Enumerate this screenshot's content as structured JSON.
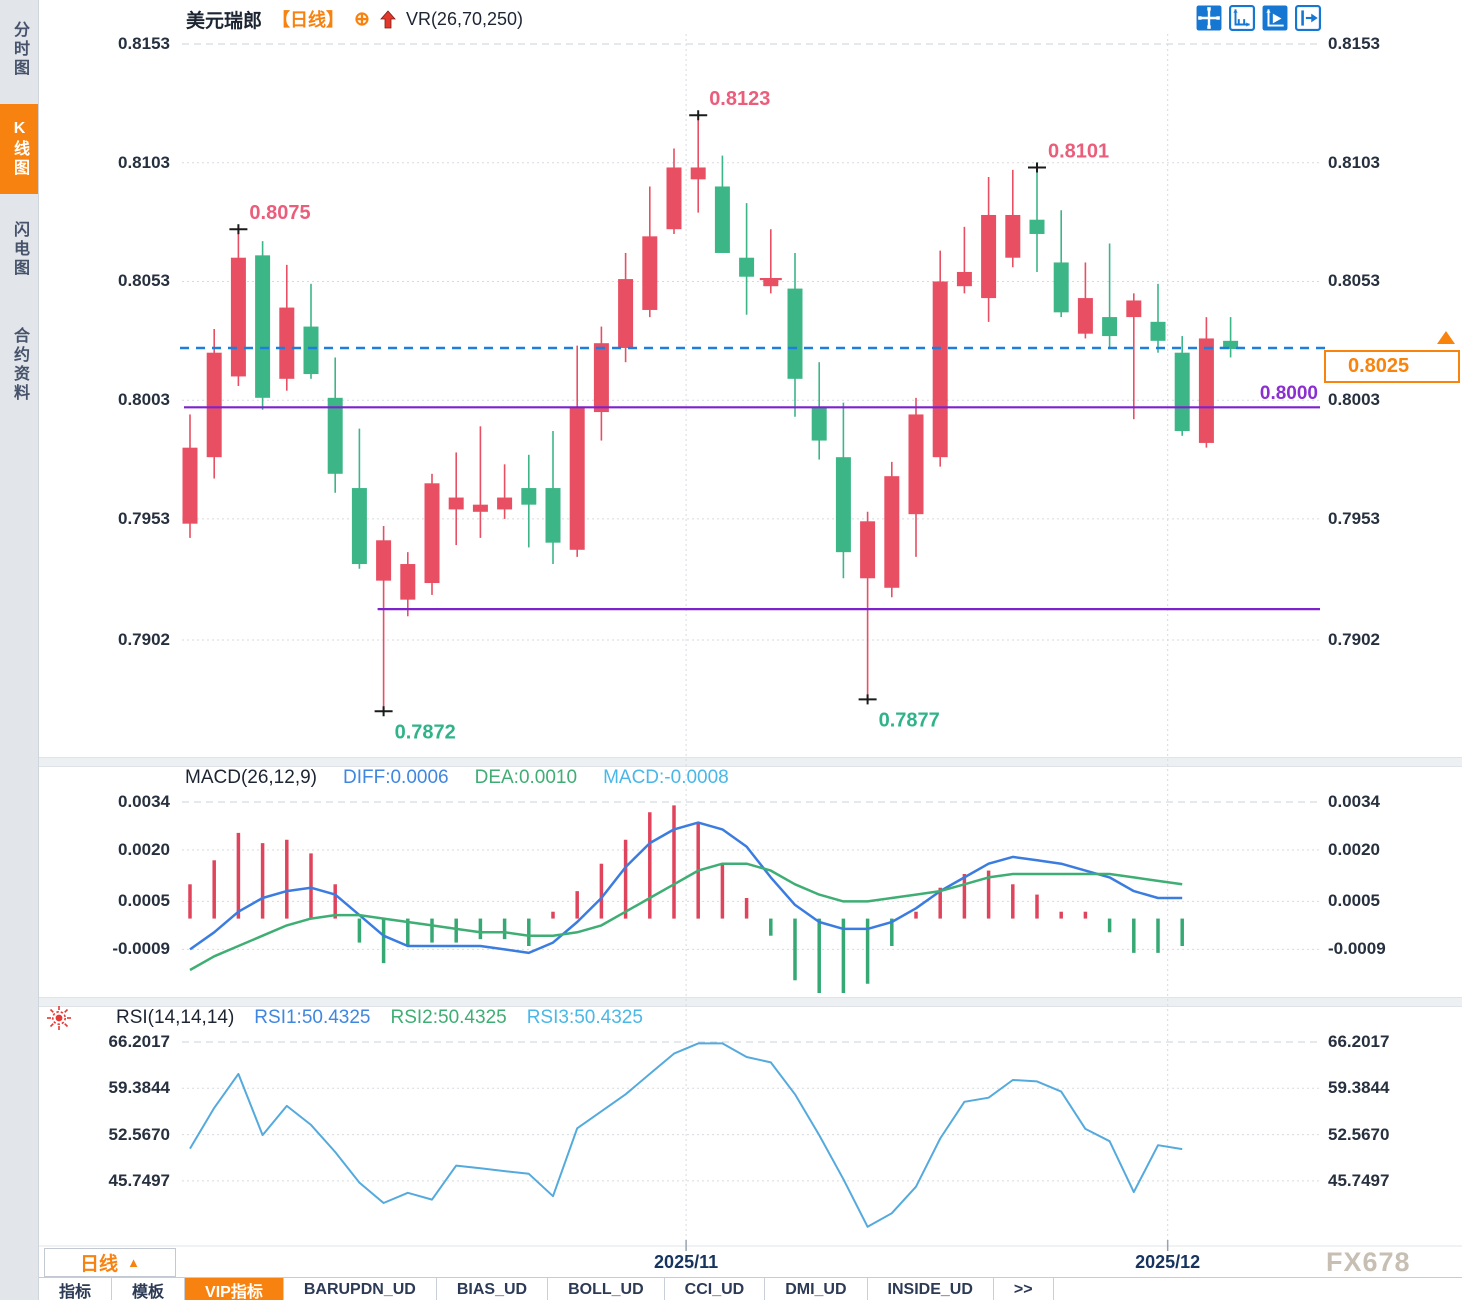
{
  "window": {
    "watermark": "FX678"
  },
  "sidebar": {
    "items": [
      {
        "label": "分时图",
        "active": false
      },
      {
        "label": "K线图",
        "active": true
      },
      {
        "label": "闪电图",
        "active": false
      },
      {
        "label": "合约资料",
        "active": false
      }
    ]
  },
  "header": {
    "symbol": "美元瑞郎",
    "period_tag": "【日线】",
    "target_icon_glyph": "⊕",
    "indicator_label": "VR(26,70,250)"
  },
  "toolbar": {
    "icons": [
      "move-crosshair-icon",
      "x-axis-scale-icon",
      "y-axis-scale-icon",
      "pan-right-icon"
    ]
  },
  "main_axis": [
    "0.8153",
    "0.8103",
    "0.8053",
    "0.8003",
    "0.7953",
    "0.7902"
  ],
  "price_marker": {
    "value": "0.8025"
  },
  "levels": {
    "label_0_8000": "0.8000"
  },
  "macd_header": {
    "title": "MACD(26,12,9)",
    "diff": "DIFF:0.0006",
    "dea": "DEA:0.0010",
    "macd": "MACD:-0.0008"
  },
  "macd_axis": [
    "0.0034",
    "0.0020",
    "0.0005",
    "-0.0009"
  ],
  "rsi_header": {
    "title": "RSI(14,14,14)",
    "rsi1": "RSI1:50.4325",
    "rsi2": "RSI2:50.4325",
    "rsi3": "RSI3:50.4325"
  },
  "rsi_axis": [
    "66.2017",
    "59.3844",
    "52.5670",
    "45.7497"
  ],
  "xaxis": [
    "2025/11",
    "2025/12"
  ],
  "bottom": {
    "period_label": "日线",
    "period_arrow": "▲",
    "tabs": [
      {
        "label": "指标",
        "active": false
      },
      {
        "label": "模板",
        "active": false
      },
      {
        "label": "VIP指标",
        "active": true
      },
      {
        "label": "BARUPDN_UD",
        "active": false
      },
      {
        "label": "BIAS_UD",
        "active": false
      },
      {
        "label": "BOLL_UD",
        "active": false
      },
      {
        "label": "CCI_UD",
        "active": false
      },
      {
        "label": "DMI_UD",
        "active": false
      },
      {
        "label": "INSIDE_UD",
        "active": false
      },
      {
        "label": ">>",
        "active": false
      }
    ]
  },
  "chart_data": {
    "type": "candlestick",
    "symbol": "美元瑞郎",
    "period": "日线",
    "ylim_main": [
      0.7854,
      0.8159
    ],
    "y_ticks_main": [
      0.8153,
      0.8103,
      0.8053,
      0.8003,
      0.7953,
      0.7902
    ],
    "price_line": 0.8025,
    "support_lines": [
      {
        "value": 0.8,
        "from_index": 0
      },
      {
        "value": 0.7915,
        "from_index": 8
      }
    ],
    "x_marks": [
      {
        "label": "2025/11",
        "index": 20.5
      },
      {
        "label": "2025/12",
        "index": 40.4
      }
    ],
    "candles": [
      [
        0.7951,
        0.7997,
        0.7945,
        0.7983
      ],
      [
        0.7979,
        0.8033,
        0.797,
        0.8023
      ],
      [
        0.8013,
        0.8075,
        0.8009,
        0.8063
      ],
      [
        0.8064,
        0.807,
        0.7999,
        0.8004
      ],
      [
        0.8012,
        0.806,
        0.8007,
        0.8042
      ],
      [
        0.8034,
        0.8052,
        0.8012,
        0.8014
      ],
      [
        0.8004,
        0.8021,
        0.7964,
        0.7972
      ],
      [
        0.7966,
        0.7991,
        0.7932,
        0.7934
      ],
      [
        0.7927,
        0.795,
        0.7872,
        0.7944
      ],
      [
        0.7919,
        0.7939,
        0.7912,
        0.7934
      ],
      [
        0.7926,
        0.7972,
        0.7921,
        0.7968
      ],
      [
        0.7957,
        0.7981,
        0.7942,
        0.7962
      ],
      [
        0.7956,
        0.7992,
        0.7945,
        0.7959
      ],
      [
        0.7957,
        0.7976,
        0.7953,
        0.7962
      ],
      [
        0.7966,
        0.798,
        0.7941,
        0.7959
      ],
      [
        0.7966,
        0.799,
        0.7934,
        0.7943
      ],
      [
        0.794,
        0.8026,
        0.7937,
        0.8
      ],
      [
        0.7998,
        0.8034,
        0.7986,
        0.8027
      ],
      [
        0.8025,
        0.8065,
        0.8019,
        0.8054
      ],
      [
        0.8041,
        0.8093,
        0.8038,
        0.8072
      ],
      [
        0.8075,
        0.8109,
        0.8073,
        0.8101
      ],
      [
        0.8096,
        0.8123,
        0.8082,
        0.8101
      ],
      [
        0.8093,
        0.8106,
        0.8065,
        0.8065
      ],
      [
        0.8063,
        0.8086,
        0.8039,
        0.8055
      ],
      [
        0.8051,
        0.8075,
        0.8048,
        0.8054
      ],
      [
        0.805,
        0.8065,
        0.7996,
        0.8012
      ],
      [
        0.8,
        0.8019,
        0.7978,
        0.7986
      ],
      [
        0.7979,
        0.8002,
        0.7928,
        0.7939
      ],
      [
        0.7928,
        0.7956,
        0.7877,
        0.7952
      ],
      [
        0.7924,
        0.7977,
        0.792,
        0.7971
      ],
      [
        0.7955,
        0.8004,
        0.7937,
        0.7997
      ],
      [
        0.7979,
        0.8066,
        0.7975,
        0.8053
      ],
      [
        0.8051,
        0.8076,
        0.8048,
        0.8057
      ],
      [
        0.8046,
        0.8097,
        0.8036,
        0.8081
      ],
      [
        0.8063,
        0.81,
        0.8059,
        0.8081
      ],
      [
        0.8079,
        0.8101,
        0.8057,
        0.8073
      ],
      [
        0.8061,
        0.8083,
        0.8038,
        0.804
      ],
      [
        0.8031,
        0.8061,
        0.8029,
        0.8046
      ],
      [
        0.8038,
        0.8069,
        0.8025,
        0.803
      ],
      [
        0.8038,
        0.8048,
        0.7995,
        0.8045
      ],
      [
        0.8036,
        0.8052,
        0.8023,
        0.8028
      ],
      [
        0.8023,
        0.803,
        0.7988,
        0.799
      ],
      [
        0.7985,
        0.8038,
        0.7983,
        0.8029
      ],
      [
        0.8028,
        0.8038,
        0.8021,
        0.8025
      ]
    ],
    "annotations": [
      {
        "index": 2,
        "type": "high",
        "price": 0.8075,
        "text": "0.8075"
      },
      {
        "index": 21,
        "type": "high",
        "price": 0.8123,
        "text": "0.8123"
      },
      {
        "index": 35,
        "type": "high",
        "price": 0.8101,
        "text": "0.8101"
      },
      {
        "index": 8,
        "type": "low",
        "price": 0.7872,
        "text": "0.7872"
      },
      {
        "index": 28,
        "type": "low",
        "price": 0.7877,
        "text": "0.7877"
      }
    ],
    "macd": {
      "params": [
        26,
        12,
        9
      ],
      "diff_last": 0.0006,
      "dea_last": 0.001,
      "macd_last": -0.0008,
      "y_ticks": [
        0.0034,
        0.002,
        0.0005,
        -0.0009
      ],
      "hist": [
        0.001,
        0.0017,
        0.0025,
        0.0022,
        0.0023,
        0.0019,
        0.001,
        -0.0007,
        -0.0013,
        -0.0008,
        -0.0007,
        -0.0007,
        -0.0006,
        -0.0006,
        -0.0008,
        0.0002,
        0.0008,
        0.0016,
        0.0023,
        0.0031,
        0.0033,
        0.0028,
        0.0016,
        0.0006,
        -0.0005,
        -0.0018,
        -0.0024,
        -0.0023,
        -0.0019,
        -0.0008,
        0.0002,
        0.0009,
        0.0013,
        0.0014,
        0.001,
        0.0007,
        0.0002,
        0.0002,
        -0.0004,
        -0.001,
        -0.001,
        -0.0008
      ],
      "diff": [
        -0.0009,
        -0.0004,
        0.0002,
        0.0006,
        0.0008,
        0.0009,
        0.0007,
        0.0001,
        -0.0005,
        -0.0008,
        -0.0008,
        -0.0008,
        -0.0008,
        -0.0009,
        -0.001,
        -0.0007,
        -0.0001,
        0.0006,
        0.0015,
        0.0022,
        0.0026,
        0.0028,
        0.0026,
        0.0021,
        0.0012,
        0.0004,
        -0.0001,
        -0.0003,
        -0.0003,
        -0.0001,
        0.0003,
        0.0008,
        0.0012,
        0.0016,
        0.0018,
        0.0017,
        0.0016,
        0.0014,
        0.0012,
        0.0008,
        0.0006,
        0.0006
      ],
      "dea": [
        -0.0015,
        -0.0011,
        -0.0008,
        -0.0005,
        -0.0002,
        0.0,
        0.0001,
        0.0001,
        0.0,
        -0.0001,
        -0.0002,
        -0.0003,
        -0.0004,
        -0.0004,
        -0.0005,
        -0.0005,
        -0.0004,
        -0.0002,
        0.0002,
        0.0006,
        0.001,
        0.0014,
        0.0016,
        0.0016,
        0.0014,
        0.001,
        0.0007,
        0.0005,
        0.0005,
        0.0006,
        0.0007,
        0.0008,
        0.001,
        0.0012,
        0.0013,
        0.0013,
        0.0013,
        0.0013,
        0.0013,
        0.0012,
        0.0011,
        0.001
      ]
    },
    "rsi": {
      "params": [
        14,
        14,
        14
      ],
      "last": 50.4325,
      "y_ticks": [
        66.2017,
        59.3844,
        52.567,
        45.7497
      ],
      "values": [
        50.5,
        56.5,
        61.5,
        52.5,
        56.8,
        54.0,
        50.0,
        45.5,
        42.5,
        44.0,
        43.0,
        48.0,
        47.6,
        47.2,
        46.8,
        43.5,
        53.5,
        56.0,
        58.5,
        61.5,
        64.5,
        66.0,
        66.0,
        64.0,
        63.2,
        58.5,
        52.5,
        46.0,
        39.0,
        41.0,
        44.9,
        52.0,
        57.4,
        58.0,
        60.6,
        60.4,
        58.9,
        53.4,
        51.6,
        44.1,
        51.0,
        50.4325
      ]
    },
    "colors": {
      "up": "#e84f63",
      "down": "#3db687",
      "macd_up": "#e0445c",
      "macd_down": "#35a873",
      "diff": "#3b7ce0",
      "dea": "#3fae74",
      "rsi": "#54aadd",
      "high_label": "#ea5d7b",
      "low_label": "#2fb389",
      "price_line": "#1c7fdd",
      "support": "#7e22ce",
      "marker": "#f8830d"
    }
  }
}
